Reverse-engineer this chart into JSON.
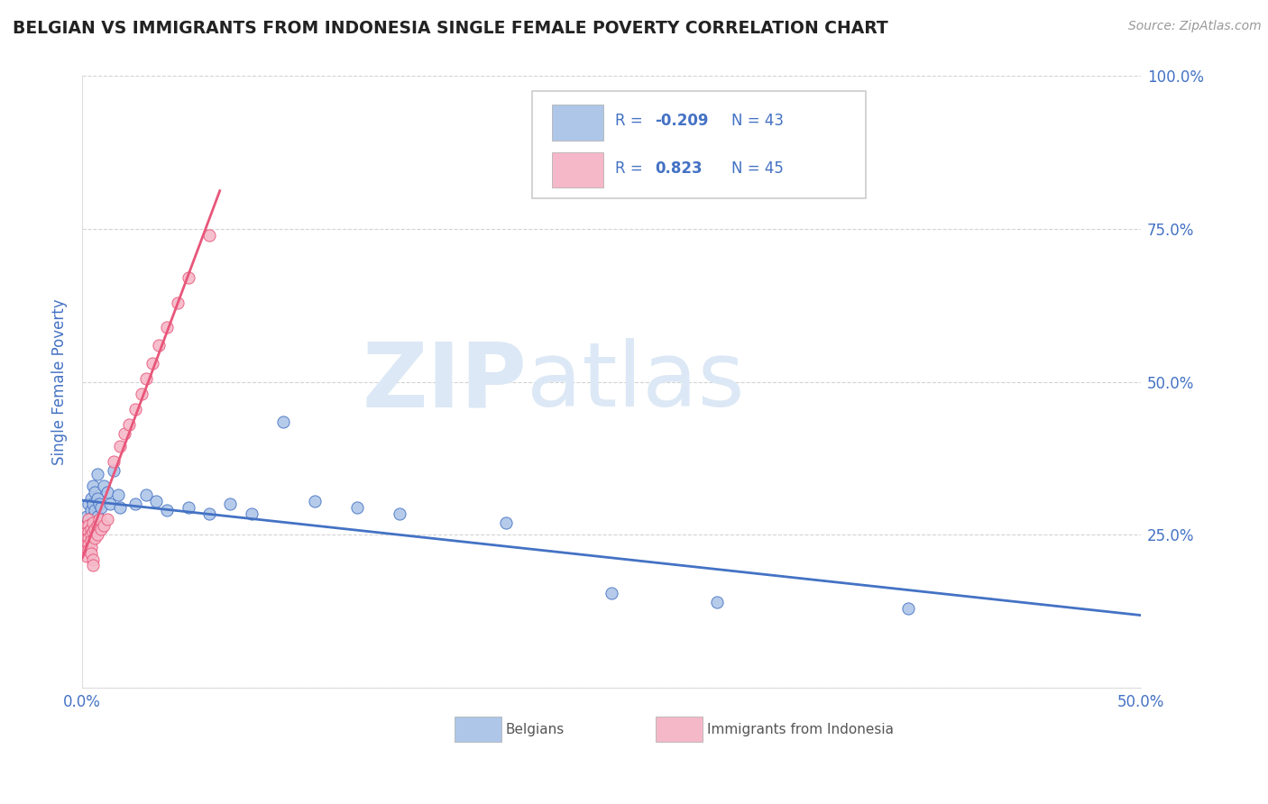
{
  "title": "BELGIAN VS IMMIGRANTS FROM INDONESIA SINGLE FEMALE POVERTY CORRELATION CHART",
  "source": "Source: ZipAtlas.com",
  "ylabel": "Single Female Poverty",
  "x_min": 0.0,
  "x_max": 0.5,
  "y_min": 0.0,
  "y_max": 1.0,
  "x_ticks": [
    0.0,
    0.1,
    0.2,
    0.3,
    0.4,
    0.5
  ],
  "x_tick_labels_bottom": [
    "0.0%",
    "",
    "",
    "",
    "",
    "50.0%"
  ],
  "y_ticks": [
    0.0,
    0.25,
    0.5,
    0.75,
    1.0
  ],
  "y_tick_labels_right": [
    "",
    "25.0%",
    "50.0%",
    "75.0%",
    "100.0%"
  ],
  "belgian_R": -0.209,
  "belgian_N": 43,
  "indonesia_R": 0.823,
  "indonesia_N": 45,
  "belgian_color": "#aec6e8",
  "indonesia_color": "#f5b8c8",
  "belgian_line_color": "#4472c4",
  "indonesia_line_color": "#e8567a",
  "legend_color": "#4472c4",
  "watermark_color": "#dce8f5",
  "background_color": "#ffffff",
  "grid_color": "#c8c8c8",
  "title_color": "#222222",
  "axis_label_color": "#4472c4",
  "tick_label_color": "#4472c4",
  "belgian_scatter": [
    [
      0.001,
      0.27
    ],
    [
      0.001,
      0.26
    ],
    [
      0.002,
      0.28
    ],
    [
      0.002,
      0.255
    ],
    [
      0.002,
      0.24
    ],
    [
      0.003,
      0.3
    ],
    [
      0.003,
      0.265
    ],
    [
      0.003,
      0.25
    ],
    [
      0.004,
      0.31
    ],
    [
      0.004,
      0.29
    ],
    [
      0.004,
      0.27
    ],
    [
      0.005,
      0.33
    ],
    [
      0.005,
      0.3
    ],
    [
      0.005,
      0.28
    ],
    [
      0.006,
      0.32
    ],
    [
      0.006,
      0.29
    ],
    [
      0.007,
      0.35
    ],
    [
      0.007,
      0.31
    ],
    [
      0.007,
      0.28
    ],
    [
      0.008,
      0.3
    ],
    [
      0.009,
      0.295
    ],
    [
      0.01,
      0.33
    ],
    [
      0.012,
      0.32
    ],
    [
      0.013,
      0.3
    ],
    [
      0.015,
      0.355
    ],
    [
      0.017,
      0.315
    ],
    [
      0.018,
      0.295
    ],
    [
      0.025,
      0.3
    ],
    [
      0.03,
      0.315
    ],
    [
      0.035,
      0.305
    ],
    [
      0.04,
      0.29
    ],
    [
      0.05,
      0.295
    ],
    [
      0.06,
      0.285
    ],
    [
      0.07,
      0.3
    ],
    [
      0.08,
      0.285
    ],
    [
      0.095,
      0.435
    ],
    [
      0.11,
      0.305
    ],
    [
      0.13,
      0.295
    ],
    [
      0.15,
      0.285
    ],
    [
      0.2,
      0.27
    ],
    [
      0.25,
      0.155
    ],
    [
      0.3,
      0.14
    ],
    [
      0.39,
      0.13
    ]
  ],
  "indonesia_scatter": [
    [
      0.001,
      0.26
    ],
    [
      0.001,
      0.255
    ],
    [
      0.001,
      0.245
    ],
    [
      0.002,
      0.265
    ],
    [
      0.002,
      0.255
    ],
    [
      0.002,
      0.245
    ],
    [
      0.002,
      0.235
    ],
    [
      0.002,
      0.225
    ],
    [
      0.002,
      0.215
    ],
    [
      0.003,
      0.275
    ],
    [
      0.003,
      0.265
    ],
    [
      0.003,
      0.255
    ],
    [
      0.003,
      0.245
    ],
    [
      0.003,
      0.235
    ],
    [
      0.003,
      0.225
    ],
    [
      0.004,
      0.26
    ],
    [
      0.004,
      0.25
    ],
    [
      0.004,
      0.24
    ],
    [
      0.004,
      0.23
    ],
    [
      0.004,
      0.22
    ],
    [
      0.005,
      0.27
    ],
    [
      0.005,
      0.255
    ],
    [
      0.005,
      0.21
    ],
    [
      0.005,
      0.2
    ],
    [
      0.006,
      0.26
    ],
    [
      0.006,
      0.245
    ],
    [
      0.007,
      0.265
    ],
    [
      0.007,
      0.25
    ],
    [
      0.008,
      0.275
    ],
    [
      0.009,
      0.26
    ],
    [
      0.01,
      0.265
    ],
    [
      0.012,
      0.275
    ],
    [
      0.015,
      0.37
    ],
    [
      0.018,
      0.395
    ],
    [
      0.02,
      0.415
    ],
    [
      0.022,
      0.43
    ],
    [
      0.025,
      0.455
    ],
    [
      0.028,
      0.48
    ],
    [
      0.03,
      0.505
    ],
    [
      0.033,
      0.53
    ],
    [
      0.036,
      0.56
    ],
    [
      0.04,
      0.59
    ],
    [
      0.045,
      0.63
    ],
    [
      0.05,
      0.67
    ],
    [
      0.06,
      0.74
    ]
  ]
}
